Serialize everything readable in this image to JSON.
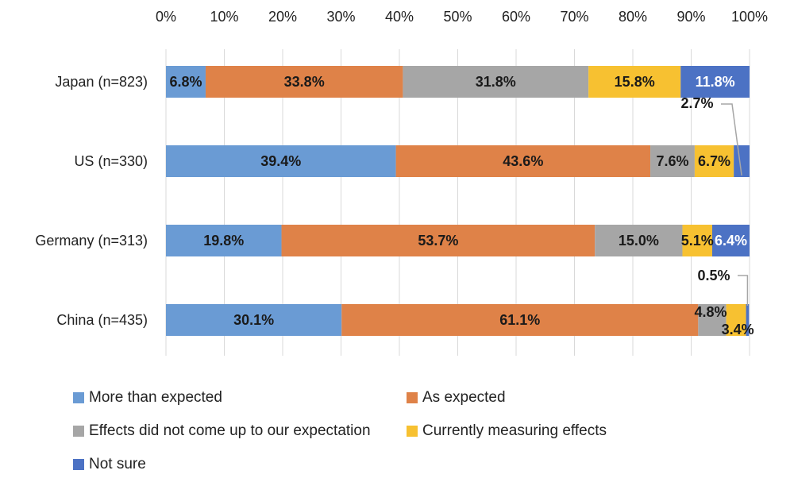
{
  "chart_data": {
    "type": "bar",
    "orientation": "horizontal",
    "stacked": true,
    "title": "",
    "xlabel": "",
    "ylabel": "",
    "xlim": [
      0,
      100
    ],
    "x_ticks": [
      "0%",
      "10%",
      "20%",
      "30%",
      "40%",
      "50%",
      "60%",
      "70%",
      "80%",
      "90%",
      "100%"
    ],
    "x_axis_position": "top",
    "grid": true,
    "legend_position": "bottom",
    "categories": [
      "Japan (n=823)",
      "US (n=330)",
      "Germany (n=313)",
      "China (n=435)"
    ],
    "series": [
      {
        "name": "More than expected",
        "color": "#6a9bd4",
        "values": [
          6.8,
          39.4,
          19.8,
          30.1
        ],
        "labels": [
          "6.8%",
          "39.4%",
          "19.8%",
          "30.1%"
        ]
      },
      {
        "name": "As expected",
        "color": "#df8248",
        "values": [
          33.8,
          43.6,
          53.7,
          61.1
        ],
        "labels": [
          "33.8%",
          "43.6%",
          "53.7%",
          "61.1%"
        ]
      },
      {
        "name": "Effects did not come up to our expectation",
        "color": "#a6a6a6",
        "values": [
          31.8,
          7.6,
          15.0,
          4.8
        ],
        "labels": [
          "31.8%",
          "7.6%",
          "15.0%",
          "4.8%"
        ]
      },
      {
        "name": "Currently measuring effects",
        "color": "#f7c131",
        "values": [
          15.8,
          6.7,
          5.1,
          3.4
        ],
        "labels": [
          "15.8%",
          "6.7%",
          "5.1%",
          "3.4%"
        ]
      },
      {
        "name": "Not sure",
        "color": "#4c72c4",
        "values": [
          11.8,
          2.7,
          6.4,
          0.5
        ],
        "labels": [
          "11.8%",
          "2.7%",
          "6.4%",
          "0.5%"
        ]
      }
    ]
  }
}
